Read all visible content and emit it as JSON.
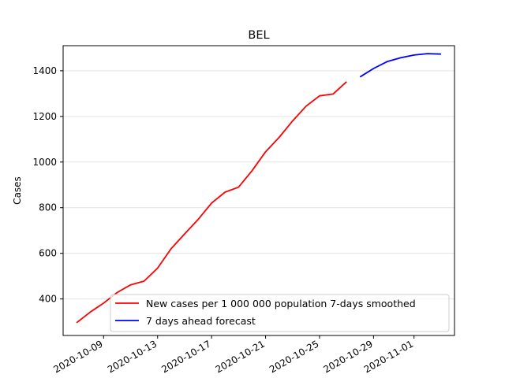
{
  "chart_data": {
    "type": "line",
    "title": "BEL",
    "xlabel": "",
    "ylabel": "Cases",
    "ylim": [
      240,
      1510
    ],
    "xlim": [
      "2020-10-06",
      "2020-11-04"
    ],
    "grid": "horizontal",
    "legend_position": "bottom-right",
    "x_tick_labels": [
      "2020-10-09",
      "2020-10-13",
      "2020-10-17",
      "2020-10-21",
      "2020-10-25",
      "2020-10-29",
      "2020-11-01"
    ],
    "y_tick_labels": [
      "400",
      "600",
      "800",
      "1000",
      "1200",
      "1400"
    ],
    "series": [
      {
        "name": "New cases per 1 000 000 population 7-days smoothed",
        "color": "#ff0000",
        "x": [
          "2020-10-07",
          "2020-10-08",
          "2020-10-09",
          "2020-10-10",
          "2020-10-11",
          "2020-10-12",
          "2020-10-13",
          "2020-10-14",
          "2020-10-15",
          "2020-10-16",
          "2020-10-17",
          "2020-10-18",
          "2020-10-19",
          "2020-10-20",
          "2020-10-21",
          "2020-10-22",
          "2020-10-23",
          "2020-10-24",
          "2020-10-25",
          "2020-10-26",
          "2020-10-27"
        ],
        "y": [
          296,
          342,
          382,
          428,
          462,
          478,
          535,
          620,
          685,
          748,
          820,
          868,
          890,
          962,
          1045,
          1108,
          1180,
          1245,
          1290,
          1298,
          1352
        ]
      },
      {
        "name": "7 days ahead forecast",
        "color": "#0000ff",
        "x": [
          "2020-10-28",
          "2020-10-29",
          "2020-10-30",
          "2020-10-31",
          "2020-11-01",
          "2020-11-02",
          "2020-11-03"
        ],
        "y": [
          1373,
          1410,
          1440,
          1457,
          1469,
          1475,
          1473
        ]
      }
    ]
  }
}
